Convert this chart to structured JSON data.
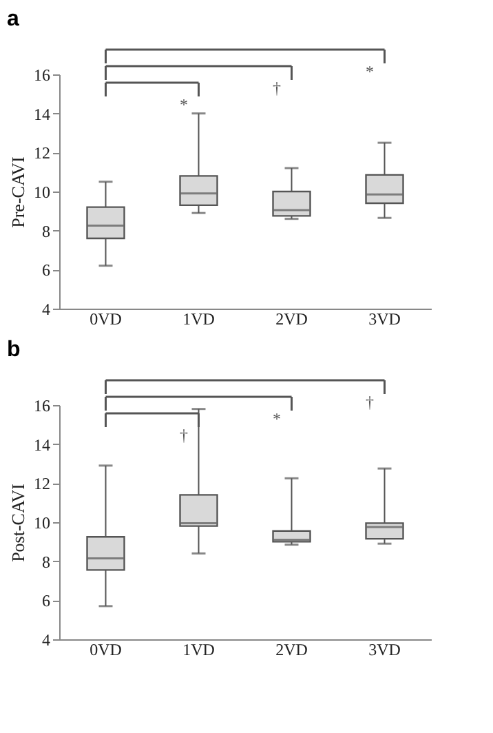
{
  "chart_data": [
    {
      "type": "box",
      "title": "a",
      "ylabel": "Pre-CAVI",
      "categories": [
        "0VD",
        "1VD",
        "2VD",
        "3VD"
      ],
      "ylim": [
        4,
        16
      ],
      "yticks": [
        4,
        6,
        8,
        10,
        12,
        14,
        16
      ],
      "grid": false,
      "color": "#d9d9d9",
      "annotations": [
        "*",
        "†",
        "*"
      ],
      "boxes": [
        {
          "low": 6.2,
          "q1": 7.6,
          "median": 8.25,
          "q3": 9.2,
          "high": 10.5
        },
        {
          "low": 8.9,
          "q1": 9.3,
          "median": 9.9,
          "q3": 10.8,
          "high": 14.0
        },
        {
          "low": 8.6,
          "q1": 8.75,
          "median": 9.05,
          "q3": 10.0,
          "high": 11.2
        },
        {
          "low": 8.65,
          "q1": 9.4,
          "median": 9.85,
          "q3": 10.85,
          "high": 12.5
        }
      ]
    },
    {
      "type": "box",
      "title": "b",
      "ylabel": "Post-CAVI",
      "categories": [
        "0VD",
        "1VD",
        "2VD",
        "3VD"
      ],
      "ylim": [
        4,
        16
      ],
      "yticks": [
        4,
        6,
        8,
        10,
        12,
        14,
        16
      ],
      "grid": false,
      "color": "#d9d9d9",
      "annotations": [
        "†",
        "*",
        "†"
      ],
      "boxes": [
        {
          "low": 5.7,
          "q1": 7.55,
          "median": 8.15,
          "q3": 9.25,
          "high": 12.9
        },
        {
          "low": 8.4,
          "q1": 9.8,
          "median": 9.95,
          "q3": 11.4,
          "high": 15.8
        },
        {
          "low": 8.85,
          "q1": 9.0,
          "median": 9.1,
          "q3": 9.55,
          "high": 12.25
        },
        {
          "low": 8.9,
          "q1": 9.15,
          "median": 9.75,
          "q3": 9.95,
          "high": 12.75
        }
      ]
    }
  ]
}
